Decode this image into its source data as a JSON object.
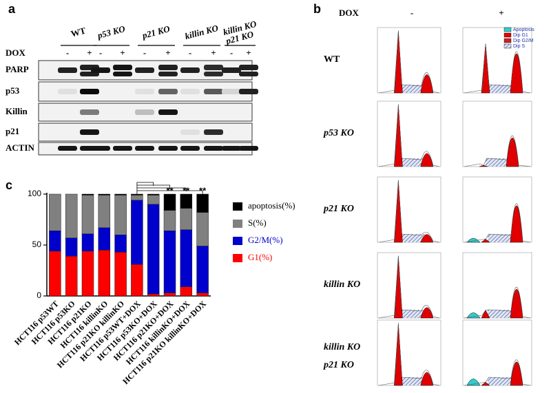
{
  "panel_a": {
    "label": "a",
    "dox_label": "DOX",
    "dox_states": [
      "-",
      "+"
    ],
    "groups": [
      [
        "WT"
      ],
      [
        "p53 KO"
      ],
      [
        "p21 KO"
      ],
      [
        "killin KO"
      ],
      [
        "killin KO",
        "p21 KO"
      ]
    ],
    "rows": [
      "PARP",
      "p53",
      "Killin",
      "p21",
      "ACTIN"
    ]
  },
  "panel_b": {
    "label": "b",
    "dox_label": "DOX",
    "dox_states": [
      "-",
      "+"
    ],
    "rows": [
      [
        "WT"
      ],
      [
        "p53 KO"
      ],
      [
        "p21 KO"
      ],
      [
        "killin KO"
      ],
      [
        "killin KO",
        "p21 KO"
      ]
    ],
    "legend": [
      "Apoptosis",
      "Dip G1",
      "Dip G2/M",
      "Dip S"
    ]
  },
  "chart_data": {
    "type": "bar",
    "stacked": true,
    "label": "c",
    "categories": [
      "HCT116 p53WT",
      "HCT116 p53KO",
      "HCT116 p21KO",
      "HCT116 killinKO",
      "HCT116 p21KO killinKO",
      "HCT116 p53WT+DOX",
      "HCT116 p53KO+DOX",
      "HCT116 p21KO+DOX",
      "HCT116 killinKO+DOX",
      "HCT116 p21KO killinKO+DOX"
    ],
    "series": [
      {
        "name": "G1(%)",
        "color": "#ff0000",
        "values": [
          44,
          39,
          44,
          45,
          43,
          31,
          2,
          3,
          9,
          3
        ]
      },
      {
        "name": "G2/M(%)",
        "color": "#0000cc",
        "values": [
          20,
          18,
          17,
          22,
          17,
          63,
          88,
          61,
          56,
          46
        ]
      },
      {
        "name": "S(%)",
        "color": "#808080",
        "values": [
          36,
          43,
          38,
          32,
          39,
          5,
          9,
          20,
          21,
          33
        ]
      },
      {
        "name": "apoptosis(%)",
        "color": "#000000",
        "values": [
          0,
          0,
          1,
          1,
          1,
          1,
          1,
          16,
          14,
          18
        ]
      }
    ],
    "significance": [
      "**",
      "**",
      "**"
    ],
    "ylim": [
      0,
      100
    ],
    "yticks": [
      0,
      50,
      100
    ]
  }
}
